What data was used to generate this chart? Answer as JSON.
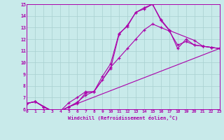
{
  "xlabel": "Windchill (Refroidissement éolien,°C)",
  "xlim": [
    0,
    23
  ],
  "ylim": [
    6,
    15
  ],
  "xticks": [
    0,
    1,
    2,
    3,
    4,
    5,
    6,
    7,
    8,
    9,
    10,
    11,
    12,
    13,
    14,
    15,
    16,
    17,
    18,
    19,
    20,
    21,
    22,
    23
  ],
  "yticks": [
    6,
    7,
    8,
    9,
    10,
    11,
    12,
    13,
    14,
    15
  ],
  "background_color": "#c8eaea",
  "grid_color": "#a8d0d0",
  "line_color": "#aa00aa",
  "line1_x": [
    0,
    1,
    2,
    3,
    4,
    5,
    6,
    7,
    8,
    9,
    10,
    11,
    12,
    13,
    14,
    15,
    16,
    17,
    18,
    19,
    20,
    21,
    22,
    23
  ],
  "line1_y": [
    6.5,
    6.65,
    6.2,
    5.85,
    5.85,
    6.55,
    7.0,
    7.5,
    7.5,
    8.8,
    9.9,
    12.5,
    13.1,
    14.3,
    14.7,
    15.0,
    13.7,
    12.8,
    11.2,
    12.0,
    11.5,
    11.4,
    11.3,
    11.2
  ],
  "line2_x": [
    0,
    1,
    3,
    4,
    5,
    6,
    7,
    8,
    10,
    11,
    12,
    13,
    14,
    15,
    16,
    17,
    20,
    21,
    22,
    23
  ],
  "line2_y": [
    6.5,
    6.65,
    5.85,
    5.85,
    6.2,
    6.5,
    7.4,
    7.5,
    9.5,
    12.4,
    13.2,
    14.3,
    14.6,
    15.0,
    13.6,
    12.75,
    11.9,
    11.4,
    11.3,
    11.2
  ],
  "line3_x": [
    0,
    1,
    2,
    3,
    4,
    5,
    6,
    7,
    8,
    9,
    10,
    11,
    12,
    13,
    14,
    15,
    16,
    17,
    18,
    19,
    20,
    21,
    22,
    23
  ],
  "line3_y": [
    6.5,
    6.65,
    6.2,
    5.85,
    5.85,
    6.2,
    6.6,
    7.2,
    7.5,
    8.5,
    9.6,
    10.4,
    11.2,
    12.0,
    12.8,
    13.3,
    13.0,
    12.7,
    11.5,
    11.8,
    11.5,
    11.4,
    11.3,
    11.2
  ],
  "line4_x": [
    0,
    1,
    2,
    3,
    4,
    5,
    23
  ],
  "line4_y": [
    6.5,
    6.65,
    6.2,
    5.85,
    5.85,
    6.2,
    11.2
  ]
}
